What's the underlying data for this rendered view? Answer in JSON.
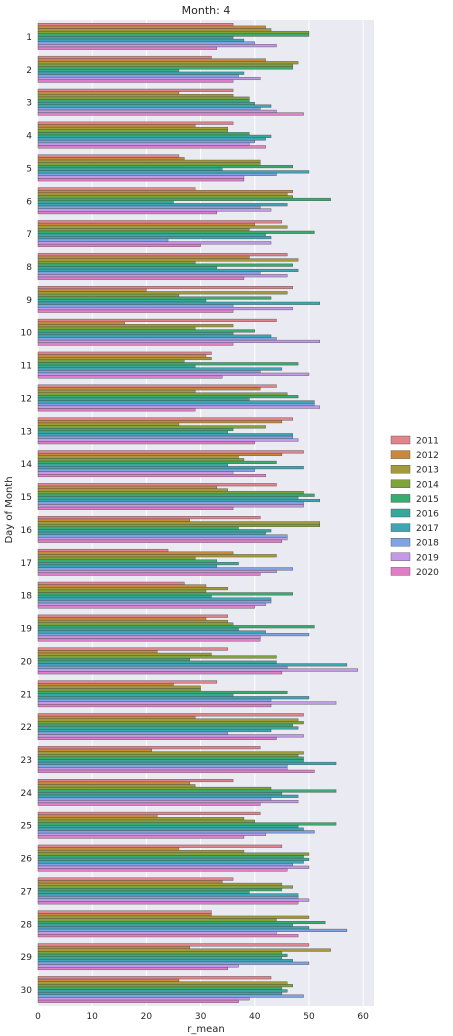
{
  "chart_data": {
    "type": "bar",
    "orientation": "horizontal",
    "title": "Month: 4",
    "xlabel": "r_mean",
    "ylabel": "Day of Month",
    "xlim": [
      0,
      62
    ],
    "xticks": [
      0,
      10,
      20,
      30,
      40,
      50,
      60
    ],
    "grid": true,
    "legend_placement": "right",
    "categories": [
      "1",
      "2",
      "3",
      "4",
      "5",
      "6",
      "7",
      "8",
      "9",
      "10",
      "11",
      "12",
      "13",
      "14",
      "15",
      "16",
      "17",
      "18",
      "19",
      "20",
      "21",
      "22",
      "23",
      "24",
      "25",
      "26",
      "27",
      "28",
      "29",
      "30"
    ],
    "series": [
      {
        "name": "2011",
        "color": "#e1848d",
        "values": [
          36,
          32,
          36,
          36,
          26,
          29,
          45,
          46,
          47,
          44,
          32,
          44,
          47,
          49,
          44,
          41,
          24,
          27,
          35,
          35,
          33,
          49,
          41,
          36,
          41,
          45,
          36,
          32,
          50,
          43
        ]
      },
      {
        "name": "2012",
        "color": "#c9893c",
        "values": [
          42,
          42,
          26,
          29,
          27,
          47,
          40,
          39,
          20,
          16,
          31,
          41,
          45,
          45,
          33,
          28,
          36,
          31,
          31,
          22,
          25,
          29,
          21,
          28,
          22,
          26,
          34,
          32,
          28,
          26
        ]
      },
      {
        "name": "2013",
        "color": "#a59a3b",
        "values": [
          43,
          48,
          36,
          35,
          41,
          46,
          46,
          48,
          46,
          36,
          32,
          29,
          26,
          37,
          35,
          52,
          44,
          35,
          35,
          32,
          30,
          48,
          49,
          29,
          38,
          38,
          45,
          50,
          54,
          46
        ]
      },
      {
        "name": "2014",
        "color": "#7ea33a",
        "values": [
          50,
          47,
          39,
          35,
          41,
          47,
          39,
          29,
          26,
          29,
          27,
          46,
          42,
          38,
          49,
          52,
          29,
          31,
          36,
          44,
          30,
          49,
          48,
          43,
          40,
          50,
          47,
          44,
          45,
          47
        ]
      },
      {
        "name": "2015",
        "color": "#3aab6e",
        "values": [
          50,
          47,
          39,
          39,
          47,
          54,
          51,
          47,
          43,
          40,
          48,
          48,
          36,
          44,
          51,
          37,
          33,
          47,
          51,
          28,
          46,
          47,
          49,
          55,
          55,
          49,
          45,
          53,
          46,
          45
        ]
      },
      {
        "name": "2016",
        "color": "#38a89c",
        "values": [
          36,
          26,
          40,
          43,
          34,
          25,
          42,
          33,
          31,
          36,
          29,
          39,
          35,
          35,
          48,
          43,
          37,
          32,
          37,
          44,
          36,
          48,
          49,
          45,
          48,
          50,
          39,
          47,
          45,
          46
        ]
      },
      {
        "name": "2017",
        "color": "#3da5b3",
        "values": [
          38,
          38,
          43,
          42,
          50,
          46,
          43,
          48,
          52,
          43,
          45,
          51,
          47,
          49,
          52,
          42,
          33,
          43,
          42,
          57,
          50,
          43,
          55,
          48,
          49,
          49,
          48,
          50,
          47,
          45
        ]
      },
      {
        "name": "2018",
        "color": "#7fa3e3",
        "values": [
          40,
          37,
          41,
          40,
          44,
          41,
          24,
          41,
          36,
          44,
          41,
          51,
          47,
          40,
          49,
          46,
          47,
          43,
          50,
          46,
          43,
          35,
          46,
          43,
          51,
          47,
          48,
          57,
          50,
          49
        ]
      },
      {
        "name": "2019",
        "color": "#c49ae6",
        "values": [
          44,
          41,
          44,
          39,
          38,
          43,
          43,
          46,
          47,
          52,
          50,
          52,
          48,
          36,
          49,
          46,
          44,
          42,
          41,
          59,
          55,
          49,
          46,
          48,
          42,
          50,
          50,
          44,
          37,
          39
        ]
      },
      {
        "name": "2020",
        "color": "#e07fc8",
        "values": [
          33,
          36,
          49,
          42,
          38,
          33,
          30,
          38,
          36,
          36,
          34,
          29,
          40,
          42,
          36,
          45,
          41,
          40,
          41,
          45,
          43,
          44,
          51,
          41,
          38,
          46,
          48,
          48,
          35,
          37
        ]
      }
    ]
  }
}
